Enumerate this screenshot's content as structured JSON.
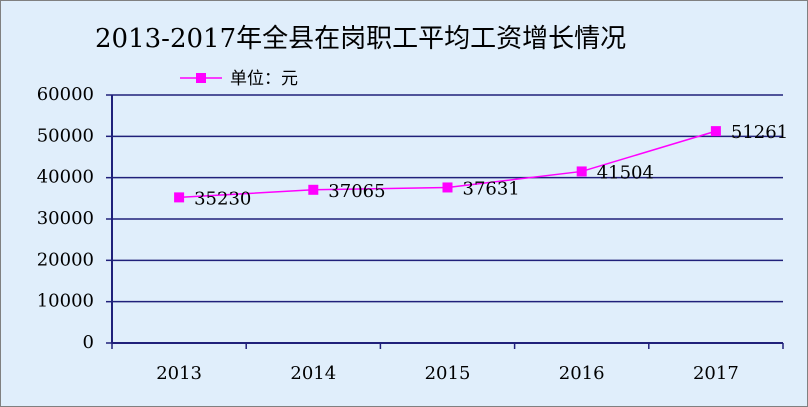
{
  "chart_data": {
    "type": "line",
    "title": "2013-2017年全县在岗职工平均工资增长情况",
    "categories": [
      "2013",
      "2014",
      "2015",
      "2016",
      "2017"
    ],
    "series": [
      {
        "name": "单位：元",
        "color": "#ff00ff",
        "values": [
          35230,
          37065,
          37631,
          41504,
          51261
        ]
      }
    ],
    "ylim": [
      0,
      60000
    ],
    "yticks": [
      0,
      10000,
      20000,
      30000,
      40000,
      50000,
      60000
    ],
    "grid": true,
    "legend": "top"
  }
}
